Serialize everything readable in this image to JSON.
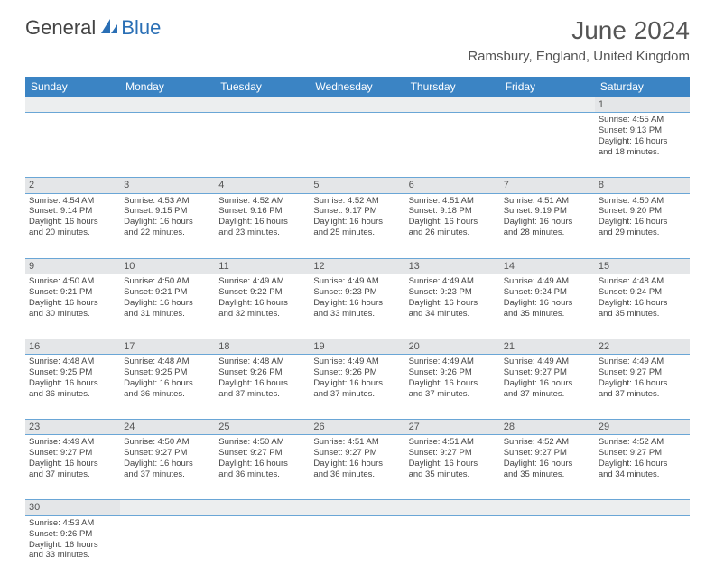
{
  "logo": {
    "text1": "General",
    "text2": "Blue"
  },
  "title": "June 2024",
  "location": "Ramsbury, England, United Kingdom",
  "colors": {
    "header_bg": "#3b84c4",
    "header_text": "#ffffff",
    "daynum_bg": "#e4e6e8",
    "blank_bg": "#eceeef",
    "border": "#6aa6d6",
    "logo_accent": "#2a6fb5",
    "text": "#444444"
  },
  "weekdays": [
    "Sunday",
    "Monday",
    "Tuesday",
    "Wednesday",
    "Thursday",
    "Friday",
    "Saturday"
  ],
  "first_weekday_index": 6,
  "days": [
    {
      "n": 1,
      "sunrise": "4:55 AM",
      "sunset": "9:13 PM",
      "dl_h": 16,
      "dl_m": 18
    },
    {
      "n": 2,
      "sunrise": "4:54 AM",
      "sunset": "9:14 PM",
      "dl_h": 16,
      "dl_m": 20
    },
    {
      "n": 3,
      "sunrise": "4:53 AM",
      "sunset": "9:15 PM",
      "dl_h": 16,
      "dl_m": 22
    },
    {
      "n": 4,
      "sunrise": "4:52 AM",
      "sunset": "9:16 PM",
      "dl_h": 16,
      "dl_m": 23
    },
    {
      "n": 5,
      "sunrise": "4:52 AM",
      "sunset": "9:17 PM",
      "dl_h": 16,
      "dl_m": 25
    },
    {
      "n": 6,
      "sunrise": "4:51 AM",
      "sunset": "9:18 PM",
      "dl_h": 16,
      "dl_m": 26
    },
    {
      "n": 7,
      "sunrise": "4:51 AM",
      "sunset": "9:19 PM",
      "dl_h": 16,
      "dl_m": 28
    },
    {
      "n": 8,
      "sunrise": "4:50 AM",
      "sunset": "9:20 PM",
      "dl_h": 16,
      "dl_m": 29
    },
    {
      "n": 9,
      "sunrise": "4:50 AM",
      "sunset": "9:21 PM",
      "dl_h": 16,
      "dl_m": 30
    },
    {
      "n": 10,
      "sunrise": "4:50 AM",
      "sunset": "9:21 PM",
      "dl_h": 16,
      "dl_m": 31
    },
    {
      "n": 11,
      "sunrise": "4:49 AM",
      "sunset": "9:22 PM",
      "dl_h": 16,
      "dl_m": 32
    },
    {
      "n": 12,
      "sunrise": "4:49 AM",
      "sunset": "9:23 PM",
      "dl_h": 16,
      "dl_m": 33
    },
    {
      "n": 13,
      "sunrise": "4:49 AM",
      "sunset": "9:23 PM",
      "dl_h": 16,
      "dl_m": 34
    },
    {
      "n": 14,
      "sunrise": "4:49 AM",
      "sunset": "9:24 PM",
      "dl_h": 16,
      "dl_m": 35
    },
    {
      "n": 15,
      "sunrise": "4:48 AM",
      "sunset": "9:24 PM",
      "dl_h": 16,
      "dl_m": 35
    },
    {
      "n": 16,
      "sunrise": "4:48 AM",
      "sunset": "9:25 PM",
      "dl_h": 16,
      "dl_m": 36
    },
    {
      "n": 17,
      "sunrise": "4:48 AM",
      "sunset": "9:25 PM",
      "dl_h": 16,
      "dl_m": 36
    },
    {
      "n": 18,
      "sunrise": "4:48 AM",
      "sunset": "9:26 PM",
      "dl_h": 16,
      "dl_m": 37
    },
    {
      "n": 19,
      "sunrise": "4:49 AM",
      "sunset": "9:26 PM",
      "dl_h": 16,
      "dl_m": 37
    },
    {
      "n": 20,
      "sunrise": "4:49 AM",
      "sunset": "9:26 PM",
      "dl_h": 16,
      "dl_m": 37
    },
    {
      "n": 21,
      "sunrise": "4:49 AM",
      "sunset": "9:27 PM",
      "dl_h": 16,
      "dl_m": 37
    },
    {
      "n": 22,
      "sunrise": "4:49 AM",
      "sunset": "9:27 PM",
      "dl_h": 16,
      "dl_m": 37
    },
    {
      "n": 23,
      "sunrise": "4:49 AM",
      "sunset": "9:27 PM",
      "dl_h": 16,
      "dl_m": 37
    },
    {
      "n": 24,
      "sunrise": "4:50 AM",
      "sunset": "9:27 PM",
      "dl_h": 16,
      "dl_m": 37
    },
    {
      "n": 25,
      "sunrise": "4:50 AM",
      "sunset": "9:27 PM",
      "dl_h": 16,
      "dl_m": 36
    },
    {
      "n": 26,
      "sunrise": "4:51 AM",
      "sunset": "9:27 PM",
      "dl_h": 16,
      "dl_m": 36
    },
    {
      "n": 27,
      "sunrise": "4:51 AM",
      "sunset": "9:27 PM",
      "dl_h": 16,
      "dl_m": 35
    },
    {
      "n": 28,
      "sunrise": "4:52 AM",
      "sunset": "9:27 PM",
      "dl_h": 16,
      "dl_m": 35
    },
    {
      "n": 29,
      "sunrise": "4:52 AM",
      "sunset": "9:27 PM",
      "dl_h": 16,
      "dl_m": 34
    },
    {
      "n": 30,
      "sunrise": "4:53 AM",
      "sunset": "9:26 PM",
      "dl_h": 16,
      "dl_m": 33
    }
  ],
  "labels": {
    "sunrise": "Sunrise:",
    "sunset": "Sunset:",
    "daylight_prefix": "Daylight:",
    "hours_word": "hours",
    "and_word": "and",
    "minutes_word": "minutes."
  }
}
